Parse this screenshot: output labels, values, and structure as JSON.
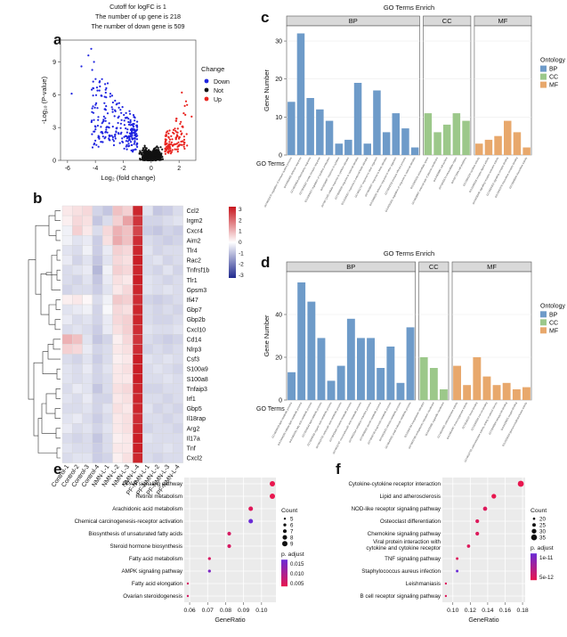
{
  "colors": {
    "down": "#1f24e0",
    "not": "#111111",
    "up": "#e8231e",
    "bp": "#6e9bc9",
    "cc": "#9cc88a",
    "mf": "#e8a86c",
    "heat_low": "#202a8e",
    "heat_mid": "#ffffff",
    "heat_high": "#c8161e",
    "padj_low": "#e8174f",
    "padj_high": "#6a2bd6"
  },
  "panels": {
    "a": {
      "label": "a",
      "title_lines": [
        "Cutoff for logFC is 1",
        "The number of up gene is 218",
        "The number of down gene is 509"
      ],
      "xlabel": "Log₂ (fold change)",
      "ylabel": "-Log₁₀ (P-value)",
      "xticks": [
        "-6",
        "-4",
        "-2",
        "0",
        "2"
      ],
      "yticks": [
        "0",
        "3",
        "6",
        "9"
      ],
      "legend_title": "Change",
      "legend": [
        "Down",
        "Not",
        "Up"
      ]
    },
    "b": {
      "label": "b",
      "scale_ticks": [
        "3",
        "2",
        "1",
        "0",
        "-1",
        "-2",
        "-3"
      ]
    },
    "c": {
      "label": "c",
      "title": "GO Terms Enrich",
      "xlabel": "GO Terms",
      "ylabel": "Gene Number",
      "yticks": [
        "0",
        "10",
        "20",
        "30"
      ],
      "facets": [
        "BP",
        "CC",
        "MF"
      ],
      "legend_title": "Ontology",
      "legend": [
        "BP",
        "CC",
        "MF"
      ]
    },
    "d": {
      "label": "d",
      "title": "GO Terms Enrich",
      "xlabel": "GO Terms",
      "ylabel": "Gene Number",
      "yticks": [
        "0",
        "20",
        "40"
      ],
      "facets": [
        "BP",
        "CC",
        "MF"
      ],
      "legend_title": "Ontology",
      "legend": [
        "BP",
        "CC",
        "MF"
      ]
    },
    "e": {
      "label": "e",
      "xlabel": "GeneRatio",
      "xticks": [
        "0.06",
        "0.07",
        "0.08",
        "0.09",
        "0.10"
      ],
      "count_title": "Count",
      "count_levels": [
        "5",
        "6",
        "7",
        "8",
        "9"
      ],
      "padj_title": "p. adjust",
      "padj_ticks": [
        "0.015",
        "0.010",
        "0.005"
      ]
    },
    "f": {
      "label": "f",
      "xlabel": "GeneRatio",
      "xticks": [
        "0.10",
        "0.12",
        "0.14",
        "0.16",
        "0.18"
      ],
      "count_title": "Count",
      "count_levels": [
        "20",
        "25",
        "30",
        "35"
      ],
      "padj_title": "p. adjust",
      "padj_ticks": [
        "1e-11",
        "5e-12"
      ]
    }
  },
  "chart_data": [
    {
      "panel": "a",
      "type": "scatter",
      "x_range": [
        -6.5,
        3.2
      ],
      "y_range": [
        0,
        11
      ],
      "up_count": 218,
      "down_count": 509,
      "logfc_cutoff": 1
    },
    {
      "panel": "b",
      "type": "heatmap",
      "rows": [
        "Ccl2",
        "Irgm2",
        "Cxcr4",
        "Aim2",
        "Tlr4",
        "Rac2",
        "Tnfrsf1b",
        "Tlr1",
        "Gpsm3",
        "Ifi47",
        "Gbp7",
        "Gbp2b",
        "Cxcl10",
        "Cd14",
        "Nlrp3",
        "Csf3",
        "S100a9",
        "S100a8",
        "Tnfaip3",
        "Irf1",
        "Gbp5",
        "Il18rap",
        "Arg2",
        "Il17a",
        "Tnf",
        "Cxcl2"
      ],
      "columns": [
        "Control-1",
        "Control-2",
        "Control-3",
        "Control-4",
        "NMN-L-1",
        "NMN-L-2",
        "NMN-L-3",
        "NMN-L-4",
        "PF-NMN-L-1",
        "PF-NMN-L-2",
        "PF-NMN-L-3",
        "PF-NMN-L-4"
      ],
      "range": [
        -3,
        3
      ],
      "values": [
        [
          0.3,
          0.4,
          0.5,
          -0.6,
          -0.8,
          0.8,
          0.6,
          2.8,
          -0.4,
          -0.8,
          -0.7,
          -0.5
        ],
        [
          0.2,
          0.5,
          0.4,
          -0.8,
          -0.5,
          0.6,
          1.2,
          2.6,
          -0.6,
          -0.6,
          -0.5,
          -0.4
        ],
        [
          -0.2,
          0.6,
          0.3,
          -0.5,
          0.5,
          1.0,
          0.8,
          2.4,
          -0.7,
          -0.8,
          -0.6,
          -0.7
        ],
        [
          -0.2,
          -0.4,
          -0.3,
          -0.7,
          0.4,
          1.1,
          0.8,
          2.7,
          -0.5,
          -0.6,
          -0.7,
          -0.6
        ],
        [
          -0.4,
          -0.5,
          -0.2,
          -0.7,
          -0.3,
          0.6,
          0.5,
          2.8,
          -0.4,
          -0.6,
          -0.5,
          -0.5
        ],
        [
          -0.3,
          -0.6,
          -0.4,
          -0.8,
          -0.4,
          0.5,
          0.4,
          2.9,
          -0.5,
          -0.4,
          -0.6,
          -0.5
        ],
        [
          -0.5,
          -0.4,
          -0.3,
          -1.0,
          -0.2,
          0.6,
          0.5,
          2.8,
          -0.5,
          -0.6,
          -0.4,
          -0.6
        ],
        [
          -0.5,
          -0.6,
          -0.4,
          -0.8,
          -0.3,
          0.4,
          0.3,
          2.9,
          -0.4,
          -0.5,
          -0.6,
          -0.5
        ],
        [
          -0.6,
          -0.5,
          -0.5,
          -0.7,
          -0.4,
          0.3,
          0.5,
          2.8,
          -0.4,
          -0.5,
          -0.4,
          -0.5
        ],
        [
          0.2,
          0.3,
          0.1,
          -0.5,
          -0.2,
          0.7,
          0.6,
          2.7,
          -0.6,
          -0.7,
          -0.6,
          -0.5
        ],
        [
          -0.4,
          -0.3,
          -0.2,
          -0.6,
          -0.1,
          0.5,
          0.4,
          2.8,
          -0.5,
          -0.6,
          -0.5,
          -0.6
        ],
        [
          -0.3,
          -0.5,
          -0.4,
          -0.6,
          -0.3,
          0.5,
          0.6,
          2.8,
          -0.5,
          -0.6,
          -0.6,
          -0.5
        ],
        [
          -0.5,
          -0.4,
          -0.5,
          -0.7,
          -0.3,
          0.4,
          0.6,
          2.7,
          -0.4,
          -0.5,
          -0.5,
          -0.4
        ],
        [
          1.0,
          0.8,
          -0.4,
          -0.8,
          -0.6,
          0.2,
          0.5,
          2.6,
          -0.5,
          -0.6,
          -0.7,
          -0.6
        ],
        [
          0.6,
          0.5,
          -0.3,
          -0.6,
          -0.5,
          0.3,
          0.4,
          2.7,
          -0.6,
          -0.5,
          -0.6,
          -0.5
        ],
        [
          -0.5,
          -0.6,
          -0.4,
          -0.7,
          -0.5,
          0.2,
          0.3,
          2.9,
          -0.4,
          -0.5,
          -0.4,
          -0.5
        ],
        [
          -0.4,
          -0.5,
          -0.3,
          -0.6,
          -0.4,
          0.3,
          0.4,
          2.9,
          -0.5,
          -0.4,
          -0.5,
          -0.6
        ],
        [
          -0.4,
          -0.5,
          -0.4,
          -0.6,
          -0.5,
          0.3,
          0.3,
          2.9,
          -0.5,
          -0.5,
          -0.4,
          -0.5
        ],
        [
          -0.5,
          -0.3,
          -0.4,
          -0.8,
          -0.5,
          0.4,
          0.5,
          2.8,
          -0.6,
          -0.6,
          -0.5,
          -0.5
        ],
        [
          -0.4,
          -0.5,
          -0.3,
          -0.6,
          -0.6,
          0.3,
          0.4,
          2.8,
          -0.5,
          -0.5,
          -0.6,
          -0.5
        ],
        [
          -0.5,
          -0.5,
          -0.4,
          -0.6,
          -0.4,
          0.4,
          0.3,
          2.8,
          -0.4,
          -0.6,
          -0.5,
          -0.6
        ],
        [
          -0.4,
          -0.3,
          -0.5,
          -0.7,
          -0.5,
          0.3,
          0.4,
          2.7,
          -0.5,
          -0.5,
          -0.6,
          -0.5
        ],
        [
          -0.3,
          -0.5,
          -0.4,
          -0.6,
          -0.4,
          0.3,
          0.4,
          2.8,
          -0.6,
          -0.5,
          -0.5,
          -0.6
        ],
        [
          -0.5,
          -0.6,
          -0.5,
          -0.8,
          -0.5,
          0.2,
          0.3,
          2.9,
          -0.4,
          -0.5,
          -0.5,
          -0.5
        ],
        [
          -0.4,
          -0.5,
          -0.5,
          -0.7,
          -0.5,
          0.3,
          0.3,
          2.9,
          -0.5,
          -0.5,
          -0.4,
          -0.5
        ],
        [
          -0.5,
          -0.4,
          -0.4,
          -0.7,
          -0.6,
          0.2,
          0.4,
          2.8,
          -0.5,
          -0.6,
          -0.5,
          -0.5
        ]
      ]
    },
    {
      "panel": "c",
      "type": "bar",
      "ylim": [
        0,
        34
      ],
      "series": [
        {
          "name": "BP",
          "values": [
            14,
            32,
            15,
            12,
            9,
            3,
            4,
            19,
            3,
            17,
            6,
            11,
            7,
            2
          ]
        },
        {
          "name": "CC",
          "values": [
            11,
            6,
            8,
            11,
            9
          ]
        },
        {
          "name": "MF",
          "values": [
            3,
            4,
            5,
            9,
            6,
            2
          ]
        }
      ]
    },
    {
      "panel": "d",
      "type": "bar",
      "ylim": [
        0,
        60
      ],
      "series": [
        {
          "name": "BP",
          "values": [
            13,
            55,
            46,
            29,
            9,
            16,
            38,
            29,
            29,
            15,
            25,
            8,
            34
          ]
        },
        {
          "name": "CC",
          "values": [
            20,
            15,
            5
          ]
        },
        {
          "name": "MF",
          "values": [
            16,
            7,
            20,
            11,
            7,
            8,
            5,
            6
          ]
        }
      ]
    },
    {
      "panel": "e",
      "type": "scatter",
      "xlim": [
        0.057,
        0.108
      ],
      "terms": [
        "PPAR signaling pathway",
        "Retinol metabolism",
        "Arachidonic acid metabolism",
        "Chemical carcinogenesis-receptor activation",
        "Biosynthesis of unsaturated fatty acids",
        "Steroid hormone biosynthesis",
        "Fatty acid metabolism",
        "AMPK signaling pathway",
        "Fatty acid elongation",
        "Ovarian steroidogenesis"
      ],
      "gene_ratio": [
        0.106,
        0.106,
        0.094,
        0.094,
        0.082,
        0.082,
        0.071,
        0.071,
        0.059,
        0.059
      ],
      "count": [
        9,
        9,
        8,
        8,
        7,
        7,
        6,
        6,
        5,
        5
      ],
      "p_adjust": [
        0.002,
        0.002,
        0.003,
        0.016,
        0.004,
        0.004,
        0.004,
        0.014,
        0.004,
        0.004
      ]
    },
    {
      "panel": "f",
      "type": "scatter",
      "xlim": [
        0.088,
        0.183
      ],
      "terms": [
        "Cytokine-cytokine receptor interaction",
        "Lipid and atherosclerosis",
        "NOD-like receptor signaling pathway",
        "Osteoclast differentiation",
        "Chemokine signaling pathway",
        "Viral protein interaction with cytokine and cytokine receptor",
        "TNF signaling pathway",
        "Staphylococcus aureus infection",
        "Leishmaniasis",
        "B cell receptor signaling pathway"
      ],
      "gene_ratio": [
        0.178,
        0.147,
        0.137,
        0.128,
        0.128,
        0.118,
        0.105,
        0.105,
        0.092,
        0.092
      ],
      "count": [
        36,
        30,
        28,
        26,
        26,
        24,
        21,
        21,
        19,
        19
      ],
      "p_adjust": [
        2e-12,
        2e-12,
        3e-12,
        3e-12,
        3e-12,
        3e-12,
        3e-12,
        1.3e-11,
        3e-12,
        3e-12
      ]
    }
  ],
  "go_terms": {
    "c": [
      "GO:0002376 regulation of immune system process",
      "GO:0006952 defense response",
      "GO:0006954 inflammatory response",
      "GO:0045087 innate immune response",
      "GO:0001817 regulation of cytokine production",
      "GO:0034097 response to cytokine",
      "GO:0071345 cellular response to cytokine stimulus",
      "GO:0009605 response to external stimulus",
      "GO:0043207 response to external biotic stimulus",
      "GO:0051707 response to other organism",
      "GO:0009607 response to biotic stimulus",
      "GO:0098542 defense response to other organism",
      "GO:0002252 immune effector process",
      "GO:0032101 regulation of response to external stimulus",
      "GO:0005615 extracellular space",
      "GO:0009897 external side of plasma membrane",
      "GO:0009986 cell surface",
      "GO:0005576 extracellular region",
      "GO:0071944 cell periphery",
      "GO:0005125 cytokine activity",
      "GO:0048018 receptor ligand activity",
      "GO:0030546 signaling receptor activator activity",
      "GO:0005102 signaling receptor binding",
      "GO:0042379 chemokine receptor binding",
      "GO:0008009 chemokine activity"
    ],
    "d": [
      "GO:0006629 lipid metabolic process",
      "GO:0044255 cellular lipid metabolic process",
      "GO:0006631 fatty acid metabolic process",
      "GO:0016042 lipid catabolic process",
      "GO:0006082 organic acid metabolic process",
      "GO:0019752 carboxylic acid metabolic process",
      "GO:0043436 oxoacid metabolic process",
      "GO:0032787 monocarboxylic acid metabolic process",
      "GO:0055114 oxidation-reduction process",
      "GO:0008202 steroid metabolic process",
      "GO:0006720 isoprenoid metabolic process",
      "GO:0001523 retinoid metabolic process",
      "GO:0044281 small molecule metabolic process",
      "GO:0005783 endoplasmic reticulum",
      "GO:0005789 endoplasmic reticulum membrane",
      "GO:0031090 organelle membrane",
      "GO:0016491 oxidoreductase activity",
      "GO:0004497 monooxygenase activity",
      "GO:0020037 heme binding",
      "GO:0005506 iron ion binding",
      "GO:0016705 oxidoreductase activity, acting on paired donors",
      "GO:0046906 tetrapyrrole binding",
      "GO:0019825 oxygen binding",
      "GO:0015020 glucuronosyltransferase activity"
    ]
  }
}
